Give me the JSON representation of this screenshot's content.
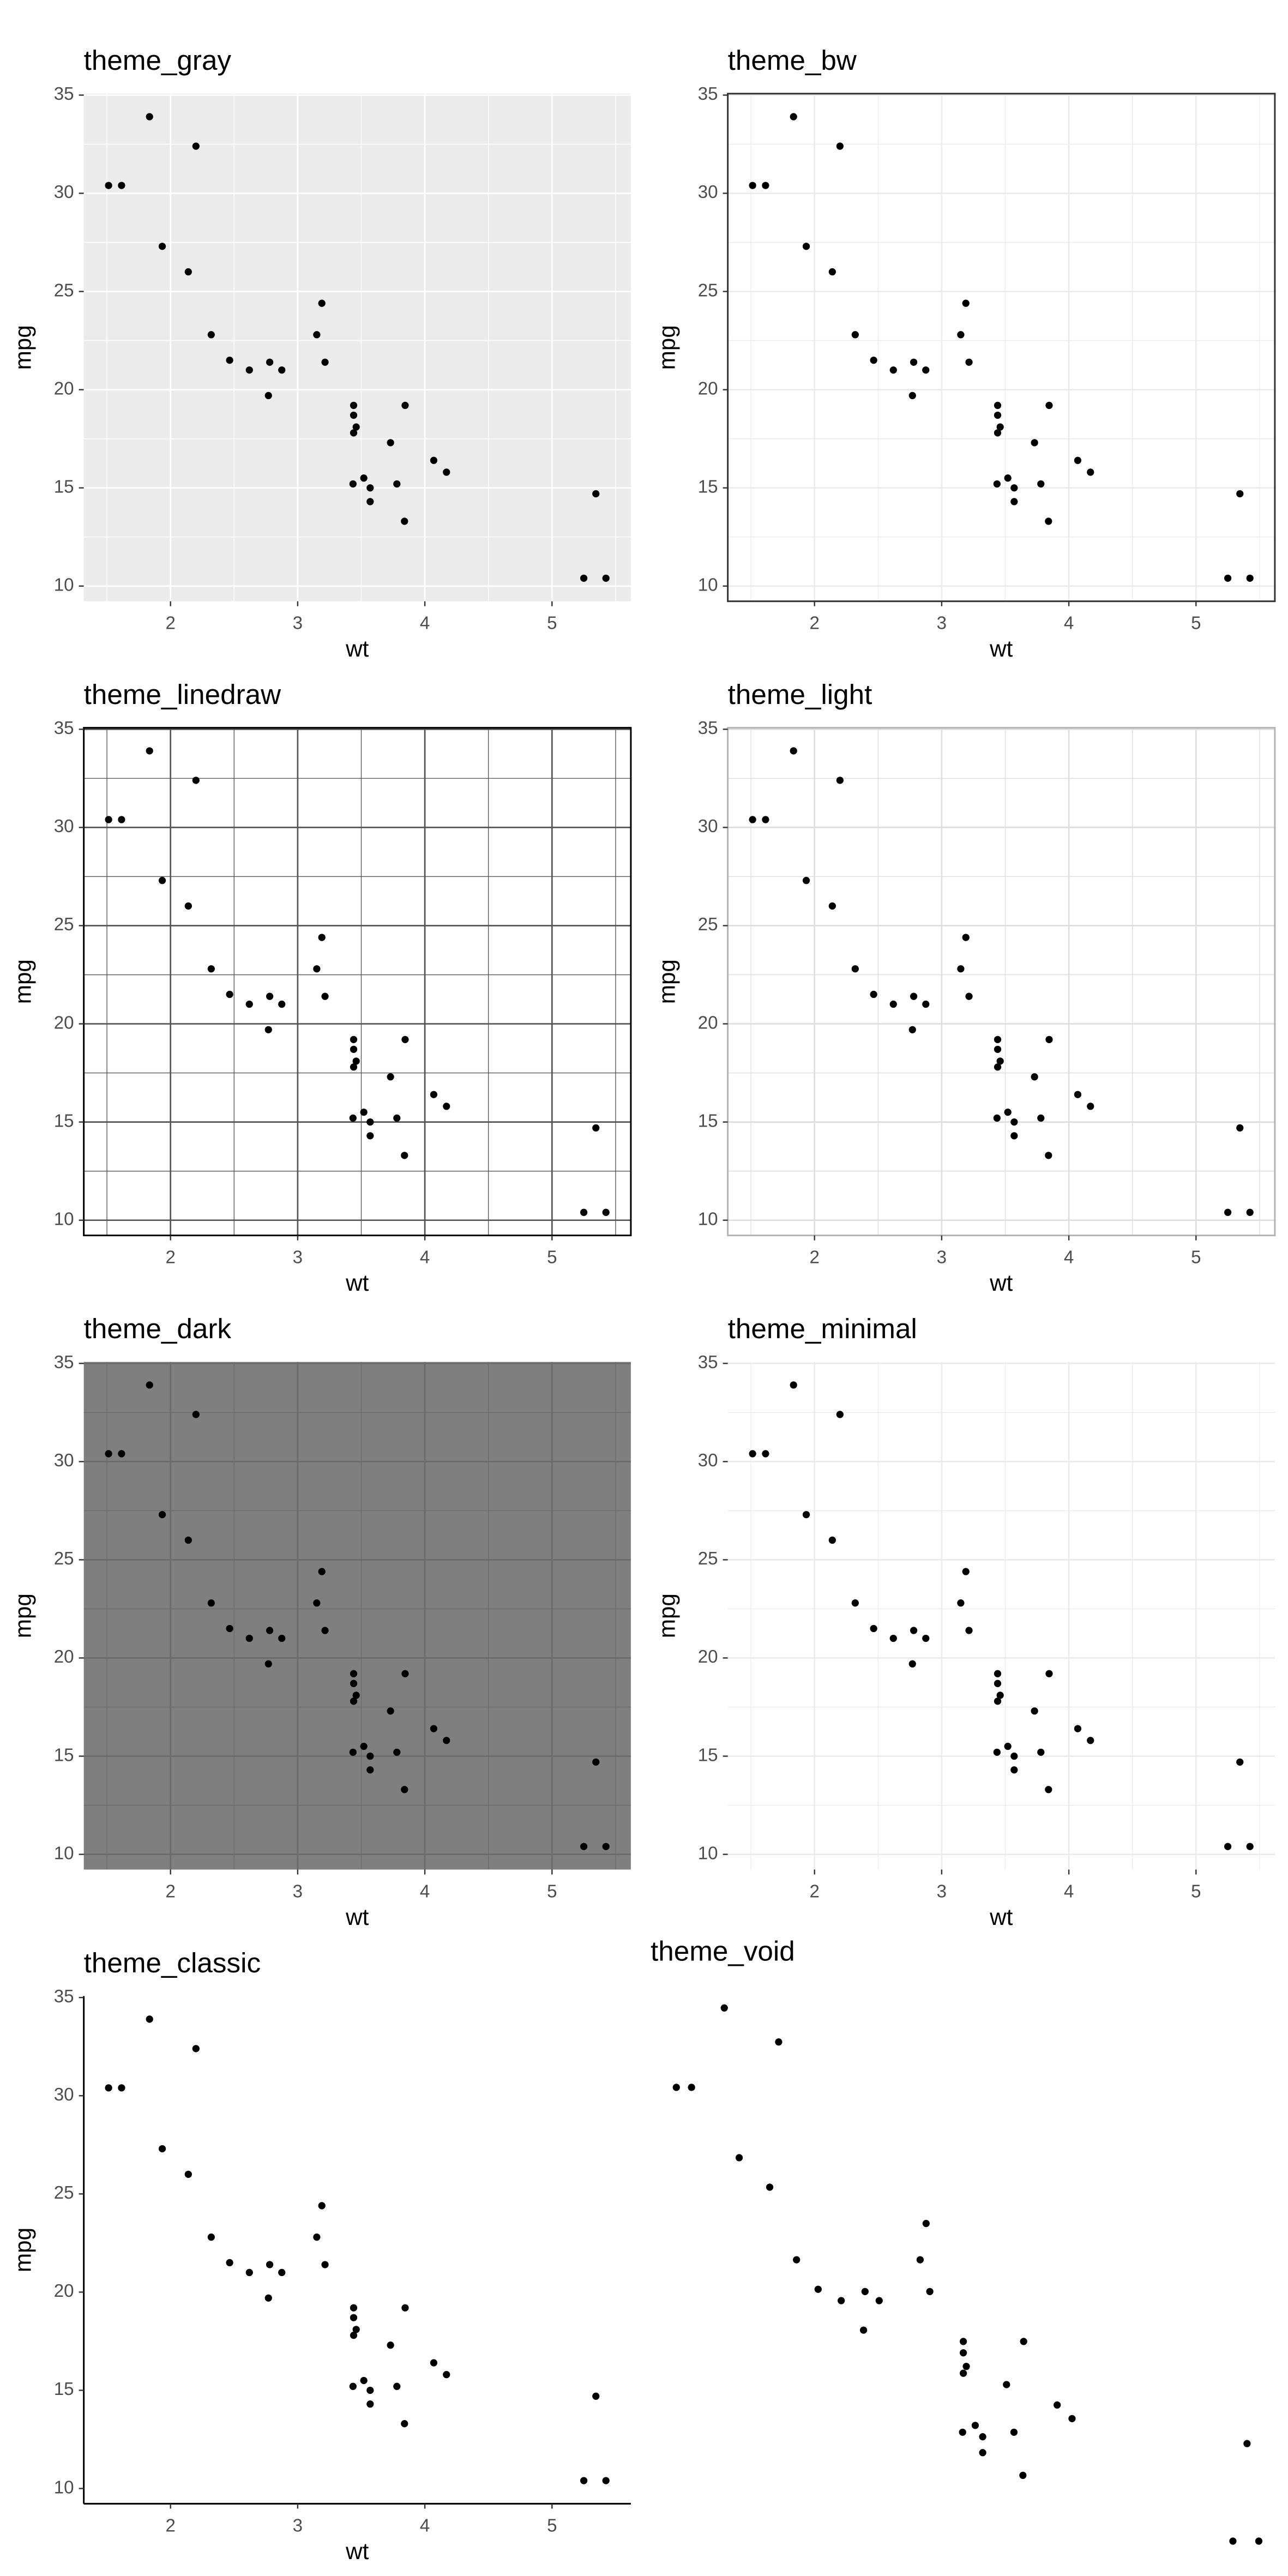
{
  "chart_data": [
    {
      "type": "scatter",
      "title": "theme_gray",
      "xlabel": "wt",
      "ylabel": "mpg",
      "x": [
        2.62,
        2.875,
        2.32,
        3.215,
        3.44,
        3.46,
        3.57,
        3.19,
        3.15,
        3.44,
        3.44,
        4.07,
        3.73,
        3.78,
        5.25,
        5.424,
        5.345,
        2.2,
        1.615,
        1.835,
        2.465,
        3.52,
        3.435,
        3.84,
        3.845,
        1.935,
        2.14,
        1.513,
        4.17,
        2.77,
        3.57,
        2.78
      ],
      "values": [
        21,
        21,
        22.8,
        21.4,
        18.7,
        18.1,
        14.3,
        24.4,
        22.8,
        19.2,
        17.8,
        16.4,
        17.3,
        15.2,
        10.4,
        10.4,
        14.7,
        32.4,
        30.4,
        33.9,
        21.5,
        15.5,
        15.2,
        13.3,
        19.2,
        27.3,
        26,
        30.4,
        15.8,
        19.7,
        15,
        21.4
      ],
      "xlim": [
        1.318,
        5.62
      ],
      "ylim": [
        9.225,
        35.075
      ],
      "xticks": [
        2,
        3,
        4,
        5
      ],
      "yticks": [
        10,
        15,
        20,
        25,
        30,
        35
      ],
      "color": "#000000",
      "panel_color": "#ebebeb",
      "grid_color": "#ffffff"
    },
    {
      "type": "scatter",
      "title": "theme_bw",
      "xlabel": "wt",
      "ylabel": "mpg",
      "x": [
        2.62,
        2.875,
        2.32,
        3.215,
        3.44,
        3.46,
        3.57,
        3.19,
        3.15,
        3.44,
        3.44,
        4.07,
        3.73,
        3.78,
        5.25,
        5.424,
        5.345,
        2.2,
        1.615,
        1.835,
        2.465,
        3.52,
        3.435,
        3.84,
        3.845,
        1.935,
        2.14,
        1.513,
        4.17,
        2.77,
        3.57,
        2.78
      ],
      "values": [
        21,
        21,
        22.8,
        21.4,
        18.7,
        18.1,
        14.3,
        24.4,
        22.8,
        19.2,
        17.8,
        16.4,
        17.3,
        15.2,
        10.4,
        10.4,
        14.7,
        32.4,
        30.4,
        33.9,
        21.5,
        15.5,
        15.2,
        13.3,
        19.2,
        27.3,
        26,
        30.4,
        15.8,
        19.7,
        15,
        21.4
      ],
      "xlim": [
        1.318,
        5.62
      ],
      "ylim": [
        9.225,
        35.075
      ],
      "xticks": [
        2,
        3,
        4,
        5
      ],
      "yticks": [
        10,
        15,
        20,
        25,
        30,
        35
      ],
      "color": "#000000",
      "panel_color": "#ffffff",
      "grid_color": "#ebebeb",
      "border_color": "#333333"
    },
    {
      "type": "scatter",
      "title": "theme_linedraw",
      "xlabel": "wt",
      "ylabel": "mpg",
      "x": [
        2.62,
        2.875,
        2.32,
        3.215,
        3.44,
        3.46,
        3.57,
        3.19,
        3.15,
        3.44,
        3.44,
        4.07,
        3.73,
        3.78,
        5.25,
        5.424,
        5.345,
        2.2,
        1.615,
        1.835,
        2.465,
        3.52,
        3.435,
        3.84,
        3.845,
        1.935,
        2.14,
        1.513,
        4.17,
        2.77,
        3.57,
        2.78
      ],
      "values": [
        21,
        21,
        22.8,
        21.4,
        18.7,
        18.1,
        14.3,
        24.4,
        22.8,
        19.2,
        17.8,
        16.4,
        17.3,
        15.2,
        10.4,
        10.4,
        14.7,
        32.4,
        30.4,
        33.9,
        21.5,
        15.5,
        15.2,
        13.3,
        19.2,
        27.3,
        26,
        30.4,
        15.8,
        19.7,
        15,
        21.4
      ],
      "xlim": [
        1.318,
        5.62
      ],
      "ylim": [
        9.225,
        35.075
      ],
      "xticks": [
        2,
        3,
        4,
        5
      ],
      "yticks": [
        10,
        15,
        20,
        25,
        30,
        35
      ],
      "color": "#000000",
      "panel_color": "#ffffff",
      "grid_color": "#555555",
      "border_color": "#000000"
    },
    {
      "type": "scatter",
      "title": "theme_light",
      "xlabel": "wt",
      "ylabel": "mpg",
      "x": [
        2.62,
        2.875,
        2.32,
        3.215,
        3.44,
        3.46,
        3.57,
        3.19,
        3.15,
        3.44,
        3.44,
        4.07,
        3.73,
        3.78,
        5.25,
        5.424,
        5.345,
        2.2,
        1.615,
        1.835,
        2.465,
        3.52,
        3.435,
        3.84,
        3.845,
        1.935,
        2.14,
        1.513,
        4.17,
        2.77,
        3.57,
        2.78
      ],
      "values": [
        21,
        21,
        22.8,
        21.4,
        18.7,
        18.1,
        14.3,
        24.4,
        22.8,
        19.2,
        17.8,
        16.4,
        17.3,
        15.2,
        10.4,
        10.4,
        14.7,
        32.4,
        30.4,
        33.9,
        21.5,
        15.5,
        15.2,
        13.3,
        19.2,
        27.3,
        26,
        30.4,
        15.8,
        19.7,
        15,
        21.4
      ],
      "xlim": [
        1.318,
        5.62
      ],
      "ylim": [
        9.225,
        35.075
      ],
      "xticks": [
        2,
        3,
        4,
        5
      ],
      "yticks": [
        10,
        15,
        20,
        25,
        30,
        35
      ],
      "color": "#000000",
      "panel_color": "#ffffff",
      "grid_color": "#dedede",
      "border_color": "#b3b3b3"
    },
    {
      "type": "scatter",
      "title": "theme_dark",
      "xlabel": "wt",
      "ylabel": "mpg",
      "x": [
        2.62,
        2.875,
        2.32,
        3.215,
        3.44,
        3.46,
        3.57,
        3.19,
        3.15,
        3.44,
        3.44,
        4.07,
        3.73,
        3.78,
        5.25,
        5.424,
        5.345,
        2.2,
        1.615,
        1.835,
        2.465,
        3.52,
        3.435,
        3.84,
        3.845,
        1.935,
        2.14,
        1.513,
        4.17,
        2.77,
        3.57,
        2.78
      ],
      "values": [
        21,
        21,
        22.8,
        21.4,
        18.7,
        18.1,
        14.3,
        24.4,
        22.8,
        19.2,
        17.8,
        16.4,
        17.3,
        15.2,
        10.4,
        10.4,
        14.7,
        32.4,
        30.4,
        33.9,
        21.5,
        15.5,
        15.2,
        13.3,
        19.2,
        27.3,
        26,
        30.4,
        15.8,
        19.7,
        15,
        21.4
      ],
      "xlim": [
        1.318,
        5.62
      ],
      "ylim": [
        9.225,
        35.075
      ],
      "xticks": [
        2,
        3,
        4,
        5
      ],
      "yticks": [
        10,
        15,
        20,
        25,
        30,
        35
      ],
      "color": "#000000",
      "panel_color": "#7f7f7f",
      "grid_color": "#6b6b6b"
    },
    {
      "type": "scatter",
      "title": "theme_minimal",
      "xlabel": "wt",
      "ylabel": "mpg",
      "x": [
        2.62,
        2.875,
        2.32,
        3.215,
        3.44,
        3.46,
        3.57,
        3.19,
        3.15,
        3.44,
        3.44,
        4.07,
        3.73,
        3.78,
        5.25,
        5.424,
        5.345,
        2.2,
        1.615,
        1.835,
        2.465,
        3.52,
        3.435,
        3.84,
        3.845,
        1.935,
        2.14,
        1.513,
        4.17,
        2.77,
        3.57,
        2.78
      ],
      "values": [
        21,
        21,
        22.8,
        21.4,
        18.7,
        18.1,
        14.3,
        24.4,
        22.8,
        19.2,
        17.8,
        16.4,
        17.3,
        15.2,
        10.4,
        10.4,
        14.7,
        32.4,
        30.4,
        33.9,
        21.5,
        15.5,
        15.2,
        13.3,
        19.2,
        27.3,
        26,
        30.4,
        15.8,
        19.7,
        15,
        21.4
      ],
      "xlim": [
        1.318,
        5.62
      ],
      "ylim": [
        9.225,
        35.075
      ],
      "xticks": [
        2,
        3,
        4,
        5
      ],
      "yticks": [
        10,
        15,
        20,
        25,
        30,
        35
      ],
      "color": "#000000",
      "grid_color": "#ebebeb"
    },
    {
      "type": "scatter",
      "title": "theme_classic",
      "xlabel": "wt",
      "ylabel": "mpg",
      "x": [
        2.62,
        2.875,
        2.32,
        3.215,
        3.44,
        3.46,
        3.57,
        3.19,
        3.15,
        3.44,
        3.44,
        4.07,
        3.73,
        3.78,
        5.25,
        5.424,
        5.345,
        2.2,
        1.615,
        1.835,
        2.465,
        3.52,
        3.435,
        3.84,
        3.845,
        1.935,
        2.14,
        1.513,
        4.17,
        2.77,
        3.57,
        2.78
      ],
      "values": [
        21,
        21,
        22.8,
        21.4,
        18.7,
        18.1,
        14.3,
        24.4,
        22.8,
        19.2,
        17.8,
        16.4,
        17.3,
        15.2,
        10.4,
        10.4,
        14.7,
        32.4,
        30.4,
        33.9,
        21.5,
        15.5,
        15.2,
        13.3,
        19.2,
        27.3,
        26,
        30.4,
        15.8,
        19.7,
        15,
        21.4
      ],
      "xlim": [
        1.318,
        5.62
      ],
      "ylim": [
        9.225,
        35.075
      ],
      "xticks": [
        2,
        3,
        4,
        5
      ],
      "yticks": [
        10,
        15,
        20,
        25,
        30,
        35
      ],
      "color": "#000000",
      "axis_color": "#000000"
    },
    {
      "type": "scatter",
      "title": "theme_void",
      "x": [
        2.62,
        2.875,
        2.32,
        3.215,
        3.44,
        3.46,
        3.57,
        3.19,
        3.15,
        3.44,
        3.44,
        4.07,
        3.73,
        3.78,
        5.25,
        5.424,
        5.345,
        2.2,
        1.615,
        1.835,
        2.465,
        3.52,
        3.435,
        3.84,
        3.845,
        1.935,
        2.14,
        1.513,
        4.17,
        2.77,
        3.57,
        2.78
      ],
      "values": [
        21,
        21,
        22.8,
        21.4,
        18.7,
        18.1,
        14.3,
        24.4,
        22.8,
        19.2,
        17.8,
        16.4,
        17.3,
        15.2,
        10.4,
        10.4,
        14.7,
        32.4,
        30.4,
        33.9,
        21.5,
        15.5,
        15.2,
        13.3,
        19.2,
        27.3,
        26,
        30.4,
        15.8,
        19.7,
        15,
        21.4
      ],
      "xlim": [
        1.318,
        5.62
      ],
      "ylim": [
        9.225,
        35.075
      ],
      "color": "#000000"
    }
  ]
}
